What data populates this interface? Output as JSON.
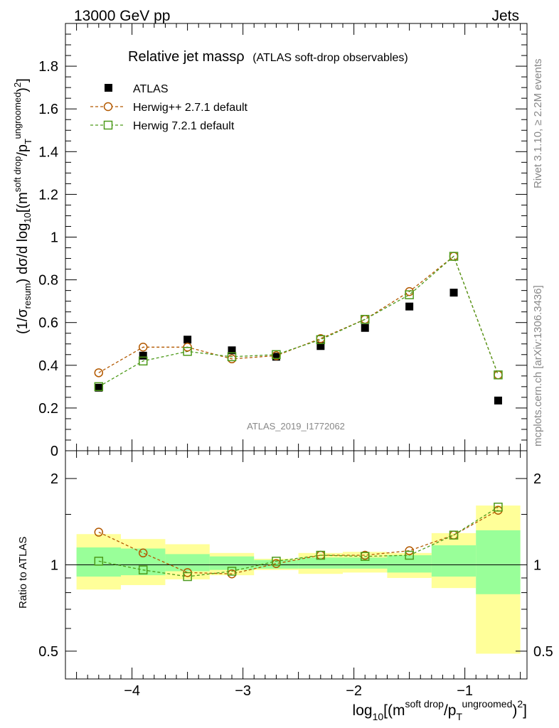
{
  "header": {
    "left": "13000 GeV pp",
    "right": "Jets"
  },
  "side_labels": {
    "rivet": "Rivet 3.1.10, ≥ 2.2M events",
    "mcplots": "mcplots.cern.ch [arXiv:1306.3436]"
  },
  "watermark": "ATLAS_2019_I1772062",
  "title": {
    "main": "Relative jet massρ",
    "sub": "(ATLAS soft-drop observables)"
  },
  "legend": [
    {
      "label": "ATLAS",
      "marker": "square-filled",
      "color": "#000000"
    },
    {
      "label": "Herwig++ 2.7.1 default",
      "marker": "circle-open",
      "color": "#b35900"
    },
    {
      "label": "Herwig 7.2.1 default",
      "marker": "square-open",
      "color": "#4d9a1a"
    }
  ],
  "axes": {
    "ylabel_main": "(1/σresum) dσ/d log10[(msoft drop/pTungroomed)2]",
    "ylabel_ratio": "Ratio to ATLAS",
    "xlabel": "log10[(msoft drop/pTungroomed)2]"
  },
  "chart_data": {
    "type": "scatter",
    "x": [
      -4.3,
      -3.9,
      -3.5,
      -3.1,
      -2.7,
      -2.3,
      -1.9,
      -1.5,
      -1.1,
      -0.7
    ],
    "x_bin_edges": [
      -4.5,
      -4.1,
      -3.7,
      -3.3,
      -2.9,
      -2.5,
      -2.1,
      -1.7,
      -1.3,
      -0.9,
      -0.5
    ],
    "xlim": [
      -4.6,
      -0.44
    ],
    "xticks": [
      -4,
      -3,
      -2,
      -1
    ],
    "xticklabels": [
      "−4",
      "−3",
      "−2",
      "−1"
    ],
    "main": {
      "ylim": [
        0,
        2.0
      ],
      "yticks": [
        0,
        0.2,
        0.4,
        0.6,
        0.8,
        1,
        1.2,
        1.4,
        1.6,
        1.8
      ],
      "yticklabels": [
        "0",
        "0.2",
        "0.4",
        "0.6",
        "0.8",
        "1",
        "1.2",
        "1.4",
        "1.6",
        "1.8"
      ],
      "series": [
        {
          "name": "ATLAS",
          "values": [
            0.295,
            0.445,
            0.52,
            0.47,
            0.44,
            0.49,
            0.575,
            0.675,
            0.74,
            0.235
          ]
        },
        {
          "name": "Herwig++ 2.7.1 default",
          "values": [
            0.365,
            0.485,
            0.485,
            0.43,
            0.445,
            0.525,
            0.615,
            0.745,
            0.91,
            0.355
          ]
        },
        {
          "name": "Herwig 7.2.1 default",
          "values": [
            0.3,
            0.42,
            0.465,
            0.44,
            0.45,
            0.52,
            0.615,
            0.73,
            0.91,
            0.355
          ]
        }
      ]
    },
    "ratio": {
      "ylim": [
        0.4,
        2.5
      ],
      "scale": "log",
      "yticks": [
        0.5,
        1,
        2
      ],
      "yticklabels": [
        "0.5",
        "1",
        "2"
      ],
      "band_inner": [
        [
          0.91,
          1.15
        ],
        [
          0.92,
          1.14
        ],
        [
          0.95,
          1.09
        ],
        [
          0.96,
          1.07
        ],
        [
          0.97,
          1.04
        ],
        [
          0.97,
          1.06
        ],
        [
          0.97,
          1.06
        ],
        [
          0.94,
          1.08
        ],
        [
          0.91,
          1.17
        ],
        [
          0.79,
          1.32
        ]
      ],
      "band_outer": [
        [
          0.82,
          1.28
        ],
        [
          0.85,
          1.23
        ],
        [
          0.89,
          1.18
        ],
        [
          0.92,
          1.1
        ],
        [
          0.96,
          1.05
        ],
        [
          0.93,
          1.1
        ],
        [
          0.94,
          1.11
        ],
        [
          0.9,
          1.1
        ],
        [
          0.83,
          1.29
        ],
        [
          0.49,
          1.61
        ]
      ],
      "series": [
        {
          "name": "Herwig++ 2.7.1 default",
          "values": [
            1.3,
            1.1,
            0.94,
            0.93,
            1.01,
            1.08,
            1.08,
            1.12,
            1.27,
            1.55
          ]
        },
        {
          "name": "Herwig 7.2.1 default",
          "values": [
            1.03,
            0.96,
            0.91,
            0.95,
            1.03,
            1.08,
            1.07,
            1.08,
            1.27,
            1.59
          ]
        }
      ]
    },
    "colors": {
      "inner_band": "#99ff99",
      "outer_band": "#ffff99",
      "herwigpp": "#b35900",
      "herwig7": "#4d9a1a",
      "data": "#000000"
    }
  }
}
